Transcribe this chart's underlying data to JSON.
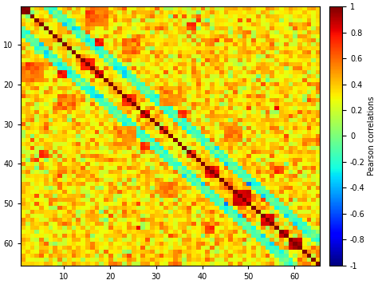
{
  "n_regions": 65,
  "tick_positions": [
    10,
    20,
    30,
    40,
    50,
    60
  ],
  "colorbar_label": "Pearson correlations",
  "colorbar_ticks": [
    1,
    0.8,
    0.6,
    0.4,
    0.2,
    0,
    -0.2,
    -0.4,
    -0.6,
    -0.8,
    -1
  ],
  "vmin": -1,
  "vmax": 1,
  "seed": 12345,
  "figsize": [
    4.74,
    3.56
  ],
  "dpi": 100,
  "background_mean": 0.35,
  "background_noise": 0.18,
  "neg_diagonal_offsets": [
    5,
    6,
    7
  ],
  "neg_diagonal_value": -0.15,
  "neg_diagonal_noise": 0.1,
  "red_clusters": [
    {
      "r": 0,
      "c": 0,
      "size": 2,
      "val": 0.95
    },
    {
      "r": 13,
      "c": 13,
      "size": 3,
      "val": 0.75
    },
    {
      "r": 16,
      "c": 16,
      "size": 2,
      "val": 0.85
    },
    {
      "r": 8,
      "c": 16,
      "size": 2,
      "val": 0.75
    },
    {
      "r": 16,
      "c": 8,
      "size": 2,
      "val": 0.75
    },
    {
      "r": 22,
      "c": 22,
      "size": 3,
      "val": 0.72
    },
    {
      "r": 26,
      "c": 26,
      "size": 2,
      "val": 0.8
    },
    {
      "r": 30,
      "c": 30,
      "size": 2,
      "val": 0.7
    },
    {
      "r": 36,
      "c": 36,
      "size": 2,
      "val": 0.72
    },
    {
      "r": 34,
      "c": 26,
      "size": 2,
      "val": 0.7
    },
    {
      "r": 26,
      "c": 34,
      "size": 2,
      "val": 0.7
    },
    {
      "r": 40,
      "c": 40,
      "size": 3,
      "val": 0.8
    },
    {
      "r": 46,
      "c": 46,
      "size": 4,
      "val": 0.85
    },
    {
      "r": 52,
      "c": 52,
      "size": 3,
      "val": 0.85
    },
    {
      "r": 56,
      "c": 56,
      "size": 2,
      "val": 0.9
    },
    {
      "r": 58,
      "c": 58,
      "size": 3,
      "val": 0.92
    },
    {
      "r": 36,
      "c": 4,
      "size": 2,
      "val": 0.72
    },
    {
      "r": 4,
      "c": 36,
      "size": 2,
      "val": 0.72
    },
    {
      "r": 55,
      "c": 40,
      "size": 2,
      "val": 0.68
    },
    {
      "r": 40,
      "c": 55,
      "size": 2,
      "val": 0.68
    }
  ],
  "orange_patches": [
    {
      "r": 0,
      "c": 14,
      "size": 5,
      "val": 0.58
    },
    {
      "r": 14,
      "c": 0,
      "size": 5,
      "val": 0.58
    },
    {
      "r": 8,
      "c": 22,
      "size": 4,
      "val": 0.55
    },
    {
      "r": 22,
      "c": 8,
      "size": 4,
      "val": 0.55
    },
    {
      "r": 20,
      "c": 30,
      "size": 5,
      "val": 0.52
    },
    {
      "r": 30,
      "c": 20,
      "size": 5,
      "val": 0.52
    },
    {
      "r": 30,
      "c": 44,
      "size": 4,
      "val": 0.55
    },
    {
      "r": 44,
      "c": 30,
      "size": 4,
      "val": 0.55
    }
  ]
}
